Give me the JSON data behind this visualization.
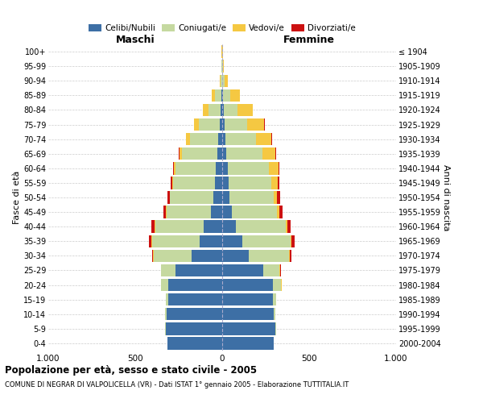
{
  "age_groups": [
    "0-4",
    "5-9",
    "10-14",
    "15-19",
    "20-24",
    "25-29",
    "30-34",
    "35-39",
    "40-44",
    "45-49",
    "50-54",
    "55-59",
    "60-64",
    "65-69",
    "70-74",
    "75-79",
    "80-84",
    "85-89",
    "90-94",
    "95-99",
    "100+"
  ],
  "birth_years": [
    "2000-2004",
    "1995-1999",
    "1990-1994",
    "1985-1989",
    "1980-1984",
    "1975-1979",
    "1970-1974",
    "1965-1969",
    "1960-1964",
    "1955-1959",
    "1950-1954",
    "1945-1949",
    "1940-1944",
    "1935-1939",
    "1930-1934",
    "1925-1929",
    "1920-1924",
    "1915-1919",
    "1910-1914",
    "1905-1909",
    "≤ 1904"
  ],
  "males": {
    "celibi": [
      315,
      325,
      320,
      310,
      310,
      270,
      175,
      130,
      105,
      65,
      50,
      42,
      38,
      30,
      22,
      15,
      10,
      5,
      2,
      0,
      0
    ],
    "coniugati": [
      2,
      3,
      8,
      15,
      40,
      80,
      220,
      275,
      280,
      255,
      250,
      240,
      230,
      200,
      165,
      120,
      70,
      35,
      8,
      3,
      2
    ],
    "vedovi": [
      0,
      0,
      0,
      0,
      0,
      1,
      1,
      2,
      2,
      2,
      3,
      5,
      8,
      15,
      20,
      25,
      30,
      20,
      5,
      1,
      1
    ],
    "divorziati": [
      0,
      0,
      0,
      1,
      2,
      3,
      8,
      12,
      20,
      15,
      12,
      10,
      8,
      5,
      2,
      0,
      0,
      0,
      0,
      0,
      0
    ]
  },
  "females": {
    "nubili": [
      295,
      305,
      295,
      290,
      290,
      235,
      155,
      115,
      80,
      55,
      42,
      38,
      32,
      25,
      18,
      12,
      8,
      5,
      2,
      0,
      0
    ],
    "coniugate": [
      3,
      5,
      10,
      20,
      50,
      95,
      230,
      280,
      285,
      260,
      255,
      245,
      235,
      205,
      175,
      130,
      80,
      40,
      12,
      4,
      2
    ],
    "vedove": [
      0,
      0,
      0,
      0,
      1,
      2,
      3,
      5,
      8,
      12,
      20,
      35,
      55,
      75,
      90,
      100,
      90,
      55,
      20,
      5,
      3
    ],
    "divorziate": [
      0,
      0,
      0,
      1,
      2,
      4,
      10,
      15,
      22,
      18,
      15,
      12,
      8,
      5,
      3,
      2,
      0,
      0,
      0,
      0,
      0
    ]
  },
  "colors": {
    "celibi_nubili": "#3d6fa5",
    "coniugati": "#c5d9a0",
    "vedovi": "#f5c842",
    "divorziati": "#cc1111"
  },
  "xlim": 1000,
  "title": "Popolazione per età, sesso e stato civile - 2005",
  "subtitle": "COMUNE DI NEGRAR DI VALPOLICELLA (VR) - Dati ISTAT 1° gennaio 2005 - Elaborazione TUTTITALIA.IT",
  "ylabel_left": "Fasce di età",
  "ylabel_right": "Anni di nascita",
  "xlabel_left": "Maschi",
  "xlabel_right": "Femmine",
  "xtick_labels": [
    "1.000",
    "500",
    "0",
    "500",
    "1.000"
  ],
  "background_color": "#ffffff",
  "grid_color": "#cccccc"
}
